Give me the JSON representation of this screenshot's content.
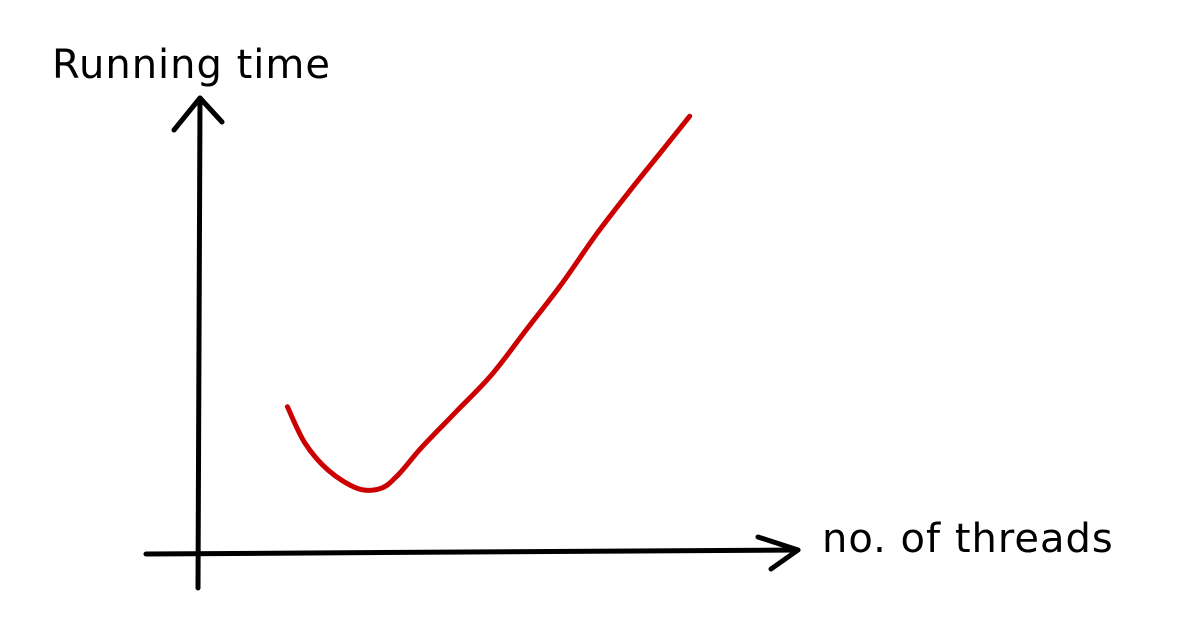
{
  "chart_data": {
    "type": "line",
    "title": "",
    "xlabel": "no. of threads",
    "ylabel": "Running time",
    "xlim": [
      0,
      100
    ],
    "ylim": [
      0,
      100
    ],
    "show_ticks": false,
    "grid": false,
    "legend": "none",
    "series": [
      {
        "color": "#cc0000",
        "x": [
          15,
          18,
          22,
          27,
          31,
          34,
          38,
          44,
          50,
          56,
          62,
          68,
          74,
          79,
          84
        ],
        "y": [
          32,
          24,
          18,
          14,
          14,
          17,
          23,
          31,
          39,
          49,
          59,
          70,
          80,
          88,
          96
        ]
      }
    ]
  },
  "colors": {
    "axis": "#000000",
    "curve": "#cc0000",
    "background": "#ffffff"
  }
}
